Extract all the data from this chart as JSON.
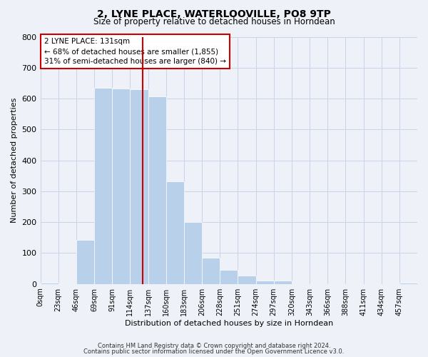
{
  "title": "2, LYNE PLACE, WATERLOOVILLE, PO8 9TP",
  "subtitle": "Size of property relative to detached houses in Horndean",
  "xlabel": "Distribution of detached houses by size in Horndean",
  "ylabel": "Number of detached properties",
  "bar_labels": [
    "0sqm",
    "23sqm",
    "46sqm",
    "69sqm",
    "91sqm",
    "114sqm",
    "137sqm",
    "160sqm",
    "183sqm",
    "206sqm",
    "228sqm",
    "251sqm",
    "274sqm",
    "297sqm",
    "320sqm",
    "343sqm",
    "366sqm",
    "388sqm",
    "411sqm",
    "434sqm",
    "457sqm"
  ],
  "bar_heights": [
    3,
    0,
    143,
    635,
    633,
    631,
    608,
    333,
    200,
    84,
    46,
    26,
    12,
    12,
    0,
    0,
    0,
    0,
    0,
    0,
    5
  ],
  "num_bars": 21,
  "bar_color": "#b8d0ea",
  "bar_edgecolor": "#ffffff",
  "vline_x": 5,
  "vline_color": "#cc0000",
  "ylim": [
    0,
    800
  ],
  "yticks": [
    0,
    100,
    200,
    300,
    400,
    500,
    600,
    700,
    800
  ],
  "grid_color": "#c8d4e8",
  "bg_color": "#eef2f8",
  "annotation_line1": "2 LYNE PLACE: 131sqm",
  "annotation_line2": "← 68% of detached houses are smaller (1,855)",
  "annotation_line3": "31% of semi-detached houses are larger (840) →",
  "annotation_box_color": "#ffffff",
  "annotation_box_edgecolor": "#cc0000",
  "footer1": "Contains HM Land Registry data © Crown copyright and database right 2024.",
  "footer2": "Contains public sector information licensed under the Open Government Licence v3.0."
}
